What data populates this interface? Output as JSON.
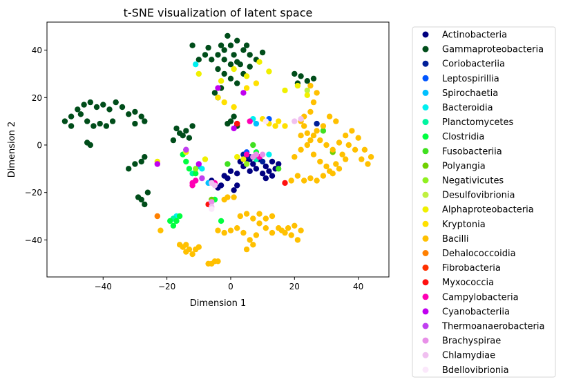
{
  "chart_data": {
    "type": "scatter",
    "title": "t-SNE visualization of latent space",
    "xlabel": "Dimension 1",
    "ylabel": "Dimension 2",
    "xlim": [
      -57.6,
      49.6
    ],
    "ylim": [
      -55.6,
      51.8
    ],
    "xticks": [
      -40,
      -20,
      0,
      20,
      40
    ],
    "yticks": [
      -40,
      -20,
      0,
      20,
      40
    ],
    "grid": false,
    "legend_position": "outside-right",
    "series": [
      {
        "name": "Actinobacteria",
        "color": "#000080",
        "points": [
          [
            3,
            -7
          ],
          [
            5,
            -6
          ],
          [
            7,
            -8
          ],
          [
            9,
            -6
          ],
          [
            11,
            -9
          ],
          [
            12,
            -11
          ],
          [
            14,
            -10
          ],
          [
            13,
            -13
          ],
          [
            10,
            -12
          ],
          [
            8,
            -10
          ],
          [
            6,
            -11
          ],
          [
            4,
            -9
          ],
          [
            2,
            -12
          ],
          [
            -1,
            -14
          ],
          [
            -3,
            -17
          ],
          [
            -6,
            -15
          ],
          [
            -4,
            -18
          ],
          [
            1,
            -19
          ],
          [
            2,
            -17
          ],
          [
            15,
            -8
          ],
          [
            11,
            -14
          ],
          [
            9,
            -5
          ],
          [
            6,
            -6
          ],
          [
            0,
            -11
          ],
          [
            13,
            -7
          ],
          [
            -2,
            -13
          ]
        ]
      },
      {
        "name": "Gammaproteobacteria",
        "color": "#004d1a",
        "points": [
          [
            -52,
            10
          ],
          [
            -50,
            12
          ],
          [
            -48,
            15
          ],
          [
            -46,
            17
          ],
          [
            -44,
            18
          ],
          [
            -42,
            16
          ],
          [
            -40,
            17
          ],
          [
            -38,
            15
          ],
          [
            -36,
            18
          ],
          [
            -34,
            16
          ],
          [
            -32,
            13
          ],
          [
            -30,
            14
          ],
          [
            -28,
            12
          ],
          [
            -27,
            10
          ],
          [
            -30,
            9
          ],
          [
            -45,
            10
          ],
          [
            -43,
            8
          ],
          [
            -41,
            9
          ],
          [
            -39,
            8
          ],
          [
            -37,
            10
          ],
          [
            -47,
            13
          ],
          [
            -50,
            8
          ],
          [
            -45,
            1
          ],
          [
            -44,
            0
          ],
          [
            -28,
            -7
          ],
          [
            -27,
            -5
          ],
          [
            -30,
            -8
          ],
          [
            -32,
            -10
          ],
          [
            -29,
            -22
          ],
          [
            -28,
            -23
          ],
          [
            -27,
            -25
          ],
          [
            -26,
            -20
          ],
          [
            -17,
            7
          ],
          [
            -16,
            5
          ],
          [
            -15,
            4
          ],
          [
            -14,
            6
          ],
          [
            -13,
            3
          ],
          [
            -18,
            2
          ],
          [
            -12,
            8
          ],
          [
            -5,
            22
          ],
          [
            -4,
            20
          ],
          [
            -3,
            24
          ],
          [
            -6,
            36
          ],
          [
            -4,
            38
          ],
          [
            -2,
            40
          ],
          [
            0,
            42
          ],
          [
            2,
            44
          ],
          [
            4,
            40
          ],
          [
            6,
            38
          ],
          [
            8,
            36
          ],
          [
            10,
            39
          ],
          [
            -8,
            38
          ],
          [
            -10,
            36
          ],
          [
            -12,
            42
          ],
          [
            -2,
            36
          ],
          [
            0,
            34
          ],
          [
            2,
            35
          ],
          [
            -4,
            32
          ],
          [
            -2,
            30
          ],
          [
            0,
            28
          ],
          [
            2,
            26
          ],
          [
            4,
            30
          ],
          [
            6,
            33
          ],
          [
            -1,
            46
          ],
          [
            1,
            38
          ],
          [
            3,
            34
          ],
          [
            5,
            42
          ],
          [
            -3,
            42
          ],
          [
            -7,
            41
          ],
          [
            20,
            30
          ],
          [
            22,
            29
          ],
          [
            24,
            27
          ],
          [
            26,
            28
          ],
          [
            21,
            26
          ],
          [
            1,
            12
          ],
          [
            0,
            10
          ],
          [
            -1,
            9
          ],
          [
            2,
            8
          ]
        ]
      },
      {
        "name": "Coriobacteriia",
        "color": "#001f99",
        "points": [
          [
            4,
            -4
          ],
          [
            6,
            -5
          ],
          [
            10,
            -7
          ],
          [
            27,
            9
          ]
        ]
      },
      {
        "name": "Leptospirillia",
        "color": "#0055ff",
        "points": [
          [
            12,
            11
          ],
          [
            5,
            -3
          ]
        ]
      },
      {
        "name": "Spirochaetia",
        "color": "#00c0ff",
        "points": [
          [
            -10,
            -9
          ],
          [
            8,
            9
          ],
          [
            -7,
            -16
          ]
        ]
      },
      {
        "name": "Bacteroidia",
        "color": "#00f0f0",
        "points": [
          [
            -11,
            34
          ],
          [
            7,
            11
          ],
          [
            -9,
            -10
          ],
          [
            -17,
            -30
          ],
          [
            12,
            -4
          ]
        ]
      },
      {
        "name": "Planctomycetes",
        "color": "#00f5a0",
        "points": [
          [
            -12,
            -12
          ],
          [
            -18,
            -31
          ],
          [
            8,
            -6
          ]
        ]
      },
      {
        "name": "Clostridia",
        "color": "#00ff40",
        "points": [
          [
            -19,
            -32
          ],
          [
            -18,
            -34
          ],
          [
            -17,
            -32
          ],
          [
            -16,
            -30
          ],
          [
            -13,
            -10
          ],
          [
            -11,
            -12
          ],
          [
            -14,
            -7
          ],
          [
            -15,
            -4
          ],
          [
            -3,
            -32
          ],
          [
            8,
            -3
          ],
          [
            -5,
            -23
          ]
        ]
      },
      {
        "name": "Fusobacteriia",
        "color": "#40e020",
        "points": [
          [
            15,
            -10
          ],
          [
            -1,
            -8
          ],
          [
            7,
            0
          ],
          [
            29,
            6
          ]
        ]
      },
      {
        "name": "Polyangia",
        "color": "#70d000",
        "points": [
          [
            -6,
            -23
          ],
          [
            32,
            -3
          ]
        ]
      },
      {
        "name": "Negativicutes",
        "color": "#90f020",
        "points": [
          [
            5,
            -8
          ],
          [
            -11,
            -10
          ]
        ]
      },
      {
        "name": "Desulfovibrionia",
        "color": "#c0f040",
        "points": [
          [
            24,
            23
          ],
          [
            -7,
            -25
          ]
        ]
      },
      {
        "name": "Alphaproteobacteria",
        "color": "#f0f000",
        "points": [
          [
            -8,
            -6
          ],
          [
            -10,
            30
          ],
          [
            -3,
            27
          ],
          [
            1,
            32
          ],
          [
            5,
            29
          ],
          [
            9,
            35
          ],
          [
            12,
            31
          ],
          [
            17,
            23
          ],
          [
            21,
            25
          ],
          [
            -23,
            -7
          ],
          [
            2,
            -5
          ],
          [
            4,
            -6
          ],
          [
            8,
            -4
          ],
          [
            -14,
            -3
          ],
          [
            24,
            21
          ]
        ]
      },
      {
        "name": "Kryptonia",
        "color": "#ffe000",
        "points": [
          [
            -4,
            20
          ],
          [
            -2,
            18
          ],
          [
            1,
            16
          ],
          [
            5,
            24
          ],
          [
            8,
            26
          ],
          [
            10,
            11
          ],
          [
            12,
            9
          ],
          [
            14,
            8
          ],
          [
            15,
            10
          ],
          [
            17,
            8
          ]
        ]
      },
      {
        "name": "Bacilli",
        "color": "#ffc000",
        "points": [
          [
            22,
            10
          ],
          [
            23,
            12
          ],
          [
            25,
            14
          ],
          [
            26,
            18
          ],
          [
            27,
            22
          ],
          [
            25,
            25
          ],
          [
            23,
            8
          ],
          [
            24,
            5
          ],
          [
            26,
            4
          ],
          [
            28,
            2
          ],
          [
            30,
            0
          ],
          [
            32,
            -2
          ],
          [
            34,
            1
          ],
          [
            36,
            4
          ],
          [
            38,
            6
          ],
          [
            40,
            3
          ],
          [
            42,
            -2
          ],
          [
            44,
            -5
          ],
          [
            43,
            -8
          ],
          [
            41,
            -6
          ],
          [
            39,
            -2
          ],
          [
            37,
            0
          ],
          [
            35,
            -4
          ],
          [
            33,
            -8
          ],
          [
            31,
            -11
          ],
          [
            29,
            -13
          ],
          [
            27,
            -15
          ],
          [
            25,
            -14
          ],
          [
            23,
            -15
          ],
          [
            21,
            -13
          ],
          [
            19,
            -15
          ],
          [
            20,
            -5
          ],
          [
            22,
            -2
          ],
          [
            24,
            0
          ],
          [
            26,
            -4
          ],
          [
            28,
            -7
          ],
          [
            30,
            -9
          ],
          [
            32,
            -12
          ],
          [
            34,
            -10
          ],
          [
            36,
            -6
          ],
          [
            31,
            12
          ],
          [
            33,
            10
          ],
          [
            29,
            8
          ],
          [
            27,
            6
          ],
          [
            25,
            2
          ],
          [
            22,
            4
          ],
          [
            3,
            -30
          ],
          [
            5,
            -29
          ],
          [
            7,
            -31
          ],
          [
            9,
            -33
          ],
          [
            11,
            -35
          ],
          [
            13,
            -37
          ],
          [
            15,
            -35
          ],
          [
            17,
            -37
          ],
          [
            19,
            -38
          ],
          [
            21,
            -40
          ],
          [
            22,
            -36
          ],
          [
            20,
            -34
          ],
          [
            8,
            -38
          ],
          [
            6,
            -40
          ],
          [
            4,
            -37
          ],
          [
            2,
            -35
          ],
          [
            0,
            -36
          ],
          [
            -2,
            -37
          ],
          [
            9,
            -29
          ],
          [
            11,
            -31
          ],
          [
            13,
            -30
          ],
          [
            7,
            -42
          ],
          [
            5,
            -44
          ],
          [
            -4,
            -36
          ],
          [
            -14,
            -42
          ],
          [
            -13,
            -44
          ],
          [
            -12,
            -46
          ],
          [
            -11,
            -44
          ],
          [
            -10,
            -43
          ],
          [
            -15,
            -43
          ],
          [
            -14,
            -45
          ],
          [
            -16,
            -42
          ],
          [
            -5,
            -49
          ],
          [
            -6,
            -50
          ],
          [
            -4,
            -49
          ],
          [
            -7,
            -50
          ],
          [
            -1,
            -22
          ],
          [
            -2,
            -23
          ],
          [
            -22,
            -36
          ],
          [
            1,
            -22
          ],
          [
            16,
            -36
          ],
          [
            18,
            -35
          ]
        ]
      },
      {
        "name": "Dehalococcoidia",
        "color": "#ff8000",
        "points": [
          [
            -23,
            -30
          ]
        ]
      },
      {
        "name": "Fibrobacteria",
        "color": "#ff3000",
        "points": [
          [
            2,
            9
          ]
        ]
      },
      {
        "name": "Myxococcia",
        "color": "#ff1010",
        "points": [
          [
            -7,
            -25
          ],
          [
            17,
            -16
          ],
          [
            2,
            9
          ]
        ]
      },
      {
        "name": "Campylobacteria",
        "color": "#ff00b4",
        "points": [
          [
            -12,
            -16
          ],
          [
            -12,
            -17
          ],
          [
            -11,
            -15
          ],
          [
            6,
            10
          ],
          [
            9,
            -5
          ],
          [
            -5,
            -16
          ],
          [
            5,
            -4
          ]
        ]
      },
      {
        "name": "Cyanobacteriia",
        "color": "#c000f0",
        "points": [
          [
            -4,
            24
          ],
          [
            4,
            22
          ],
          [
            -23,
            -8
          ],
          [
            -10,
            -8
          ],
          [
            1,
            7
          ],
          [
            -14,
            -2
          ]
        ]
      },
      {
        "name": "Thermoanaerobacteria",
        "color": "#c040f0",
        "points": [
          [
            -14,
            -2
          ],
          [
            -9,
            -14
          ]
        ]
      },
      {
        "name": "Brachyspirae",
        "color": "#e890e8",
        "points": [
          [
            -6,
            -24
          ],
          [
            7,
            -5
          ],
          [
            8,
            -4
          ],
          [
            10,
            -4
          ]
        ]
      },
      {
        "name": "Chlamydiae",
        "color": "#f0c0f0",
        "points": [
          [
            -6,
            -16
          ],
          [
            -5,
            -17
          ],
          [
            22,
            11
          ],
          [
            20,
            10
          ],
          [
            -6,
            -26
          ]
        ]
      },
      {
        "name": "Bdellovibrionia",
        "color": "#fbe8fb",
        "points": [
          [
            11,
            10
          ],
          [
            -6,
            -27
          ]
        ]
      }
    ]
  }
}
